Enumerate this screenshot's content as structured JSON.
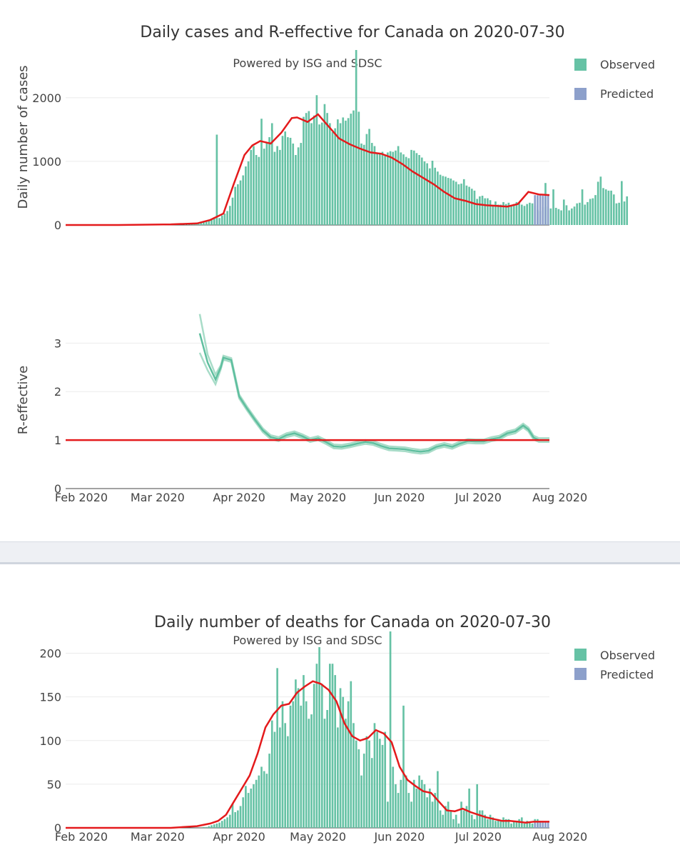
{
  "colors": {
    "observed": "#66c2a5",
    "predicted": "#8da0cb",
    "fit": "#e41a1c",
    "r_band": "#a8dcc8",
    "r_line": "#5fbf9f",
    "grid": "#ebebeb",
    "axis": "#444444",
    "title": "#333333"
  },
  "chart_data": [
    {
      "type": "bar",
      "title": "Daily cases and R-effective for Canada on 2020-07-30",
      "subtitle": "Powered by ISG and SDSC",
      "ylabel": "Daily number of cases",
      "ylim": [
        0,
        2750
      ],
      "yticks": [
        0,
        1000,
        2000
      ],
      "x_start": "2020-02-01",
      "xlim_days": [
        0,
        184
      ],
      "legend": {
        "position": "top-right",
        "entries": [
          "Observed",
          "Predicted"
        ]
      },
      "observed_start_day": 45,
      "observed_values": [
        5,
        8,
        10,
        15,
        20,
        28,
        35,
        45,
        60,
        80,
        90,
        120,
        1420,
        110,
        150,
        180,
        220,
        300,
        430,
        600,
        640,
        700,
        780,
        920,
        1000,
        1180,
        1240,
        1100,
        1070,
        1670,
        1200,
        1300,
        1380,
        1600,
        1150,
        1240,
        1180,
        1400,
        1470,
        1380,
        1370,
        1280,
        1100,
        1220,
        1290,
        1700,
        1760,
        1790,
        1600,
        1720,
        2040,
        1580,
        1610,
        1900,
        1760,
        1600,
        1460,
        1520,
        1660,
        1600,
        1690,
        1640,
        1680,
        1750,
        1800,
        2750,
        1780,
        1280,
        1260,
        1430,
        1510,
        1290,
        1240,
        1130,
        1120,
        1150,
        1090,
        1140,
        1160,
        1150,
        1170,
        1240,
        1140,
        1110,
        1070,
        1050,
        1180,
        1170,
        1130,
        1100,
        1060,
        1000,
        970,
        890,
        1010,
        900,
        840,
        790,
        770,
        760,
        740,
        730,
        700,
        680,
        640,
        650,
        720,
        620,
        600,
        570,
        540,
        410,
        450,
        460,
        420,
        420,
        390,
        320,
        370,
        320,
        320,
        360,
        330,
        350,
        310,
        330,
        360,
        350,
        320,
        300,
        330,
        350,
        340,
        300,
        240,
        220,
        280,
        660,
        290,
        260,
        560,
        270,
        250,
        230,
        400,
        310,
        230,
        260,
        290,
        340,
        350,
        560,
        320,
        360,
        410,
        420,
        470,
        680,
        760,
        580,
        560,
        540,
        540,
        480,
        340,
        350,
        690,
        370,
        450
      ],
      "predicted_start_day": 178,
      "predicted_values": [
        470,
        468,
        466,
        464,
        462,
        460
      ],
      "fit_line": {
        "days": [
          0,
          20,
          40,
          50,
          55,
          60,
          64,
          68,
          71,
          74,
          78,
          82,
          86,
          88,
          92,
          96,
          100,
          104,
          108,
          112,
          116,
          120,
          124,
          128,
          132,
          136,
          140,
          144,
          148,
          152,
          156,
          160,
          164,
          168,
          172,
          176,
          180,
          184
        ],
        "values": [
          0,
          0,
          10,
          25,
          80,
          180,
          650,
          1100,
          1250,
          1320,
          1280,
          1450,
          1680,
          1690,
          1620,
          1740,
          1550,
          1360,
          1270,
          1200,
          1140,
          1120,
          1060,
          960,
          840,
          740,
          640,
          520,
          420,
          380,
          330,
          310,
          300,
          290,
          330,
          520,
          480,
          470
        ]
      }
    },
    {
      "type": "line",
      "ylabel": "R-effective",
      "ylim": [
        0,
        3.8
      ],
      "yticks": [
        0,
        1,
        2,
        3
      ],
      "xticks": [
        "Feb 2020",
        "Mar 2020",
        "Apr 2020",
        "May 2020",
        "Jun 2020",
        "Jul 2020",
        "Aug 2020"
      ],
      "reference_line": 1,
      "r_line": {
        "days": [
          51,
          54,
          57,
          59,
          60,
          63,
          66,
          69,
          72,
          75,
          78,
          81,
          84,
          87,
          90,
          93,
          96,
          99,
          102,
          105,
          108,
          111,
          114,
          117,
          120,
          123,
          126,
          129,
          132,
          135,
          138,
          141,
          144,
          147,
          150,
          153,
          156,
          159,
          162,
          165,
          168,
          171,
          174,
          176,
          178,
          180,
          182,
          184
        ],
        "values": [
          3.2,
          2.6,
          2.25,
          2.5,
          2.7,
          2.65,
          1.9,
          1.65,
          1.42,
          1.2,
          1.06,
          1.02,
          1.1,
          1.14,
          1.08,
          1.0,
          1.04,
          0.96,
          0.87,
          0.86,
          0.89,
          0.93,
          0.96,
          0.94,
          0.88,
          0.83,
          0.82,
          0.81,
          0.78,
          0.76,
          0.78,
          0.86,
          0.9,
          0.86,
          0.93,
          0.98,
          0.97,
          0.97,
          1.02,
          1.05,
          1.14,
          1.18,
          1.3,
          1.22,
          1.05,
          1.0,
          1.0,
          1.0
        ]
      },
      "r_upper_start": 3.6,
      "r_lower_start": 2.8
    },
    {
      "type": "bar",
      "title": "Daily number of deaths for Canada on 2020-07-30",
      "subtitle": "Powered by ISG and SDSC",
      "ylim": [
        0,
        225
      ],
      "yticks": [
        0,
        50,
        100,
        150,
        200
      ],
      "xticks": [
        "Feb 2020",
        "Mar 2020",
        "Apr 2020",
        "May 2020",
        "Jun 2020",
        "Jul 2020",
        "Aug 2020"
      ],
      "legend": {
        "position": "top-right",
        "entries": [
          "Observed",
          "Predicted"
        ]
      },
      "observed_start_day": 52,
      "observed_values": [
        1,
        1,
        2,
        3,
        4,
        5,
        6,
        8,
        10,
        12,
        15,
        28,
        18,
        20,
        25,
        35,
        48,
        40,
        45,
        50,
        55,
        60,
        70,
        65,
        62,
        85,
        123,
        110,
        183,
        115,
        145,
        120,
        105,
        140,
        145,
        170,
        160,
        140,
        175,
        145,
        125,
        130,
        165,
        188,
        207,
        165,
        125,
        135,
        188,
        188,
        175,
        115,
        160,
        150,
        125,
        145,
        168,
        120,
        100,
        90,
        60,
        85,
        105,
        100,
        80,
        120,
        110,
        102,
        95,
        110,
        30,
        225,
        70,
        50,
        40,
        55,
        140,
        60,
        40,
        30,
        55,
        45,
        60,
        55,
        50,
        35,
        45,
        30,
        40,
        65,
        20,
        15,
        25,
        30,
        20,
        10,
        15,
        5,
        30,
        20,
        25,
        45,
        15,
        10,
        50,
        20,
        20,
        15,
        10,
        15,
        12,
        8,
        10,
        8,
        12,
        10,
        10,
        5,
        8,
        7,
        10,
        12,
        5,
        8,
        6,
        5,
        10,
        10,
        8
      ],
      "predicted_start_day": 178,
      "predicted_values": [
        8,
        8,
        8,
        8,
        8,
        8
      ],
      "fit_line": {
        "days": [
          0,
          40,
          50,
          55,
          58,
          61,
          64,
          67,
          70,
          73,
          76,
          79,
          82,
          85,
          88,
          91,
          94,
          97,
          100,
          103,
          106,
          109,
          112,
          115,
          118,
          121,
          124,
          127,
          130,
          133,
          136,
          139,
          142,
          145,
          148,
          151,
          154,
          157,
          160,
          163,
          166,
          169,
          172,
          175,
          178,
          184
        ],
        "values": [
          0,
          0,
          2,
          5,
          8,
          15,
          30,
          45,
          60,
          85,
          115,
          130,
          140,
          142,
          155,
          162,
          168,
          165,
          158,
          145,
          120,
          105,
          100,
          103,
          112,
          108,
          98,
          70,
          55,
          48,
          42,
          40,
          30,
          20,
          19,
          22,
          18,
          15,
          12,
          10,
          8,
          8,
          7,
          6,
          7,
          7
        ]
      }
    }
  ]
}
